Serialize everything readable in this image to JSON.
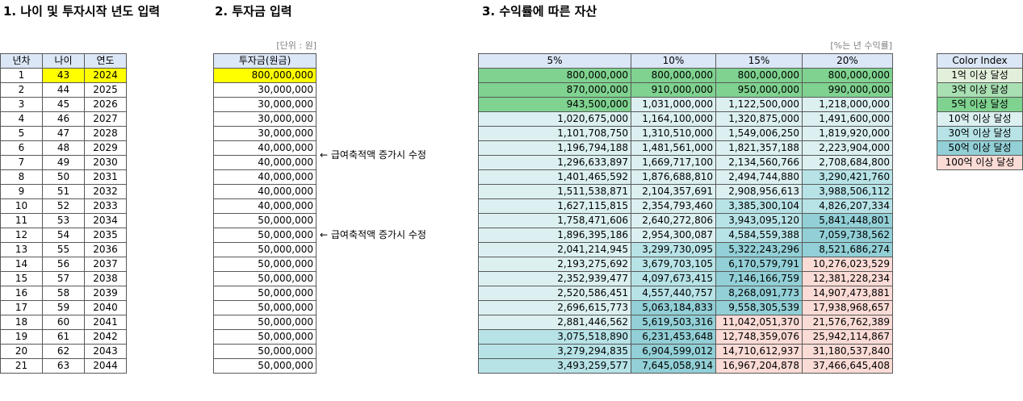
{
  "headings": {
    "section1": "1. 나이 및 투자시작 년도 입력",
    "section2": "2. 투자금 입력",
    "section3": "3. 수익률에 따른 자산"
  },
  "units": {
    "won": "[단위 : 원]",
    "rate": "[%는 년 수익률]"
  },
  "age_table": {
    "headers": [
      "년차",
      "나이",
      "연도"
    ],
    "rows": [
      [
        "1",
        "43",
        "2024"
      ],
      [
        "2",
        "44",
        "2025"
      ],
      [
        "3",
        "45",
        "2026"
      ],
      [
        "4",
        "46",
        "2027"
      ],
      [
        "5",
        "47",
        "2028"
      ],
      [
        "6",
        "48",
        "2029"
      ],
      [
        "7",
        "49",
        "2030"
      ],
      [
        "8",
        "50",
        "2031"
      ],
      [
        "9",
        "51",
        "2032"
      ],
      [
        "10",
        "52",
        "2033"
      ],
      [
        "11",
        "53",
        "2034"
      ],
      [
        "12",
        "54",
        "2035"
      ],
      [
        "13",
        "55",
        "2036"
      ],
      [
        "14",
        "56",
        "2037"
      ],
      [
        "15",
        "57",
        "2038"
      ],
      [
        "16",
        "58",
        "2039"
      ],
      [
        "17",
        "59",
        "2040"
      ],
      [
        "18",
        "60",
        "2041"
      ],
      [
        "19",
        "61",
        "2042"
      ],
      [
        "20",
        "62",
        "2043"
      ],
      [
        "21",
        "63",
        "2044"
      ]
    ],
    "highlight_color": "#ffff00"
  },
  "investment_table": {
    "header": "투자금(원금)",
    "values": [
      "800,000,000",
      "30,000,000",
      "30,000,000",
      "30,000,000",
      "30,000,000",
      "40,000,000",
      "40,000,000",
      "40,000,000",
      "40,000,000",
      "40,000,000",
      "50,000,000",
      "50,000,000",
      "50,000,000",
      "50,000,000",
      "50,000,000",
      "50,000,000",
      "50,000,000",
      "50,000,000",
      "50,000,000",
      "50,000,000",
      "50,000,000"
    ],
    "notes": [
      {
        "row": 5,
        "text": "← 급여축적액 증가시 수정"
      },
      {
        "row": 10,
        "text": "← 급여축적액 증가시 수정"
      }
    ]
  },
  "assets_table": {
    "headers": [
      "5%",
      "10%",
      "15%",
      "20%"
    ],
    "rows": [
      [
        "800,000,000",
        "800,000,000",
        "800,000,000",
        "800,000,000"
      ],
      [
        "870,000,000",
        "910,000,000",
        "950,000,000",
        "990,000,000"
      ],
      [
        "943,500,000",
        "1,031,000,000",
        "1,122,500,000",
        "1,218,000,000"
      ],
      [
        "1,020,675,000",
        "1,164,100,000",
        "1,320,875,000",
        "1,491,600,000"
      ],
      [
        "1,101,708,750",
        "1,310,510,000",
        "1,549,006,250",
        "1,819,920,000"
      ],
      [
        "1,196,794,188",
        "1,481,561,000",
        "1,821,357,188",
        "2,223,904,000"
      ],
      [
        "1,296,633,897",
        "1,669,717,100",
        "2,134,560,766",
        "2,708,684,800"
      ],
      [
        "1,401,465,592",
        "1,876,688,810",
        "2,494,744,880",
        "3,290,421,760"
      ],
      [
        "1,511,538,871",
        "2,104,357,691",
        "2,908,956,613",
        "3,988,506,112"
      ],
      [
        "1,627,115,815",
        "2,354,793,460",
        "3,385,300,104",
        "4,826,207,334"
      ],
      [
        "1,758,471,606",
        "2,640,272,806",
        "3,943,095,120",
        "5,841,448,801"
      ],
      [
        "1,896,395,186",
        "2,954,300,087",
        "4,584,559,388",
        "7,059,738,562"
      ],
      [
        "2,041,214,945",
        "3,299,730,095",
        "5,322,243,296",
        "8,521,686,274"
      ],
      [
        "2,193,275,692",
        "3,679,703,105",
        "6,170,579,791",
        "10,276,023,529"
      ],
      [
        "2,352,939,477",
        "4,097,673,415",
        "7,146,166,759",
        "12,381,228,234"
      ],
      [
        "2,520,586,451",
        "4,557,440,757",
        "8,268,091,773",
        "14,907,473,881"
      ],
      [
        "2,696,615,773",
        "5,063,184,833",
        "9,558,305,539",
        "17,938,968,657"
      ],
      [
        "2,881,446,562",
        "5,619,503,316",
        "11,042,051,370",
        "21,576,762,389"
      ],
      [
        "3,075,518,890",
        "6,231,453,648",
        "12,748,359,076",
        "25,942,114,867"
      ],
      [
        "3,279,294,835",
        "6,904,599,012",
        "14,710,612,937",
        "31,180,537,840"
      ],
      [
        "3,493,259,577",
        "7,645,058,914",
        "16,967,204,878",
        "37,466,645,408"
      ]
    ]
  },
  "color_index": {
    "header": "Color Index",
    "items": [
      {
        "label": "1억 이상 달성",
        "color": "#e2efda"
      },
      {
        "label": "3억 이상 달성",
        "color": "#a9dfb3"
      },
      {
        "label": "5억 이상 달성",
        "color": "#7fd28f"
      },
      {
        "label": "10억 이상 달성",
        "color": "#dcf0f2"
      },
      {
        "label": "30억 이상 달성",
        "color": "#b7e3e7"
      },
      {
        "label": "50억 이상 달성",
        "color": "#92cfd6"
      },
      {
        "label": "100억 이상 달성",
        "color": "#fbdbd6"
      }
    ]
  }
}
